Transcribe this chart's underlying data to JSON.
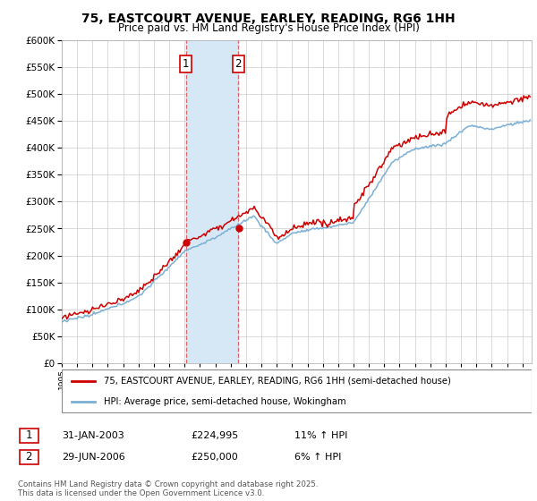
{
  "title": "75, EASTCOURT AVENUE, EARLEY, READING, RG6 1HH",
  "subtitle": "Price paid vs. HM Land Registry's House Price Index (HPI)",
  "legend_line1": "75, EASTCOURT AVENUE, EARLEY, READING, RG6 1HH (semi-detached house)",
  "legend_line2": "HPI: Average price, semi-detached house, Wokingham",
  "footer": "Contains HM Land Registry data © Crown copyright and database right 2025.\nThis data is licensed under the Open Government Licence v3.0.",
  "transaction1_date": "31-JAN-2003",
  "transaction1_price": "£224,995",
  "transaction1_hpi": "11% ↑ HPI",
  "transaction2_date": "29-JUN-2006",
  "transaction2_price": "£250,000",
  "transaction2_hpi": "6% ↑ HPI",
  "red_color": "#cc0000",
  "blue_color": "#7bafd4",
  "shade_color": "#d6e8f5",
  "vline_color": "#dd4444",
  "ylim": [
    0,
    600000
  ],
  "yticks": [
    0,
    50000,
    100000,
    150000,
    200000,
    250000,
    300000,
    350000,
    400000,
    450000,
    500000,
    550000,
    600000
  ],
  "background_color": "#ffffff",
  "grid_color": "#cccccc"
}
